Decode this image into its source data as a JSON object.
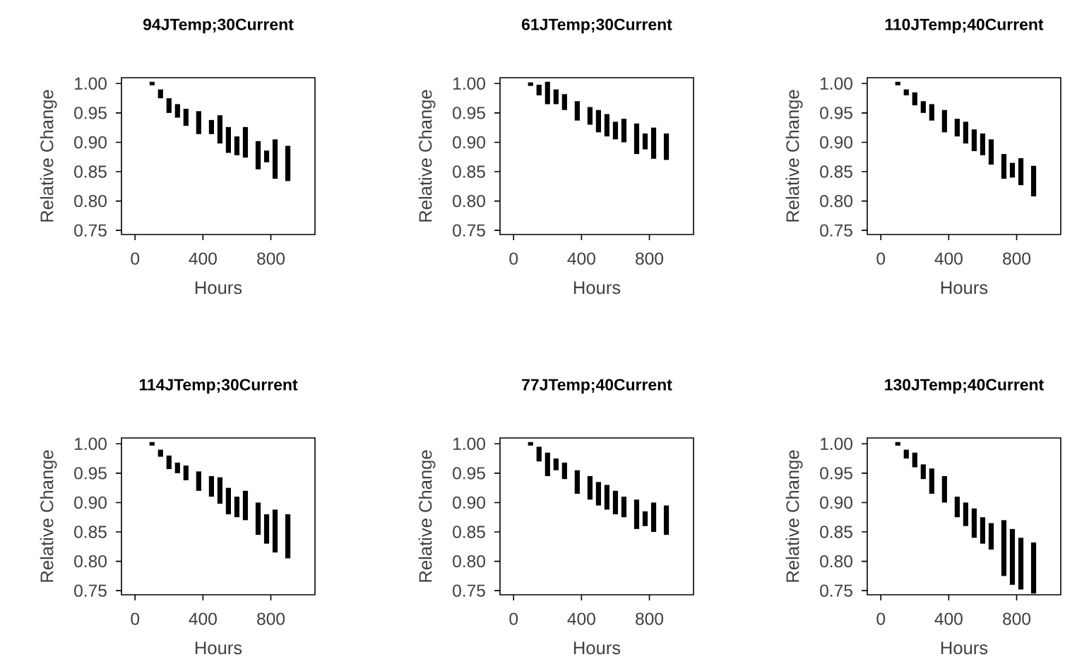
{
  "chart_data": [
    {
      "type": "bar",
      "title": "94JTemp;30Current",
      "xlabel": "Hours",
      "ylabel": "Relative Change",
      "color": "#000000",
      "x": [
        100,
        150,
        200,
        250,
        300,
        375,
        450,
        500,
        550,
        600,
        650,
        725,
        775,
        825,
        900
      ],
      "base": [
        0.997,
        0.975,
        0.95,
        0.942,
        0.928,
        0.914,
        0.914,
        0.898,
        0.882,
        0.878,
        0.874,
        0.854,
        0.866,
        0.838,
        0.834
      ],
      "values": [
        0.006,
        0.015,
        0.025,
        0.023,
        0.029,
        0.039,
        0.024,
        0.048,
        0.044,
        0.032,
        0.052,
        0.048,
        0.02,
        0.067,
        0.06
      ],
      "xlim": [
        -80,
        1060
      ],
      "ylim": [
        0.743,
        1.01
      ],
      "xticks": [
        0,
        400,
        800
      ],
      "yticks": [
        {
          "value": 0.75,
          "label": "0.75"
        },
        {
          "value": 0.8,
          "label": "0.80"
        },
        {
          "value": 0.85,
          "label": "0.85"
        },
        {
          "value": 0.9,
          "label": "0.90"
        },
        {
          "value": 0.95,
          "label": "0.95"
        },
        {
          "value": 1.0,
          "label": "1.00"
        }
      ]
    },
    {
      "type": "bar",
      "title": "61JTemp;30Current",
      "xlabel": "Hours",
      "ylabel": "Relative Change",
      "color": "#000000",
      "x": [
        100,
        150,
        200,
        250,
        300,
        375,
        450,
        500,
        550,
        600,
        650,
        725,
        775,
        825,
        900
      ],
      "base": [
        0.996,
        0.98,
        0.965,
        0.965,
        0.955,
        0.937,
        0.93,
        0.917,
        0.91,
        0.905,
        0.9,
        0.88,
        0.888,
        0.872,
        0.87
      ],
      "values": [
        0.006,
        0.018,
        0.038,
        0.025,
        0.027,
        0.033,
        0.03,
        0.038,
        0.038,
        0.03,
        0.04,
        0.052,
        0.027,
        0.053,
        0.045
      ],
      "xlim": [
        -80,
        1060
      ],
      "ylim": [
        0.743,
        1.01
      ],
      "xticks": [
        0,
        400,
        800
      ],
      "yticks": [
        {
          "value": 0.75,
          "label": "0.75"
        },
        {
          "value": 0.8,
          "label": "0.80"
        },
        {
          "value": 0.85,
          "label": "0.85"
        },
        {
          "value": 0.9,
          "label": "0.90"
        },
        {
          "value": 0.95,
          "label": "0.95"
        },
        {
          "value": 1.0,
          "label": "1.00"
        }
      ]
    },
    {
      "type": "bar",
      "title": "110JTemp;40Current",
      "xlabel": "Hours",
      "ylabel": "Relative Change",
      "color": "#000000",
      "x": [
        100,
        150,
        200,
        250,
        300,
        375,
        450,
        500,
        550,
        600,
        650,
        725,
        775,
        825,
        900
      ],
      "base": [
        0.997,
        0.98,
        0.963,
        0.95,
        0.937,
        0.917,
        0.91,
        0.898,
        0.885,
        0.878,
        0.862,
        0.838,
        0.84,
        0.827,
        0.808
      ],
      "values": [
        0.006,
        0.01,
        0.022,
        0.02,
        0.028,
        0.038,
        0.03,
        0.037,
        0.037,
        0.037,
        0.043,
        0.042,
        0.025,
        0.046,
        0.052
      ],
      "xlim": [
        -80,
        1060
      ],
      "ylim": [
        0.743,
        1.01
      ],
      "xticks": [
        0,
        400,
        800
      ],
      "yticks": [
        {
          "value": 0.75,
          "label": "0.75"
        },
        {
          "value": 0.8,
          "label": "0.80"
        },
        {
          "value": 0.85,
          "label": "0.85"
        },
        {
          "value": 0.9,
          "label": "0.90"
        },
        {
          "value": 0.95,
          "label": "0.95"
        },
        {
          "value": 1.0,
          "label": "1.00"
        }
      ]
    },
    {
      "type": "bar",
      "title": "114JTemp;30Current",
      "xlabel": "Hours",
      "ylabel": "Relative Change",
      "color": "#000000",
      "x": [
        100,
        150,
        200,
        250,
        300,
        375,
        450,
        500,
        550,
        600,
        650,
        725,
        775,
        825,
        900
      ],
      "base": [
        0.997,
        0.978,
        0.957,
        0.95,
        0.938,
        0.92,
        0.91,
        0.898,
        0.88,
        0.875,
        0.87,
        0.845,
        0.83,
        0.815,
        0.805
      ],
      "values": [
        0.006,
        0.012,
        0.023,
        0.018,
        0.025,
        0.033,
        0.035,
        0.045,
        0.045,
        0.035,
        0.05,
        0.055,
        0.05,
        0.073,
        0.075
      ],
      "xlim": [
        -80,
        1060
      ],
      "ylim": [
        0.743,
        1.01
      ],
      "xticks": [
        0,
        400,
        800
      ],
      "yticks": [
        {
          "value": 0.75,
          "label": "0.75"
        },
        {
          "value": 0.8,
          "label": "0.80"
        },
        {
          "value": 0.85,
          "label": "0.85"
        },
        {
          "value": 0.9,
          "label": "0.90"
        },
        {
          "value": 0.95,
          "label": "0.95"
        },
        {
          "value": 1.0,
          "label": "1.00"
        }
      ]
    },
    {
      "type": "bar",
      "title": "77JTemp;40Current",
      "xlabel": "Hours",
      "ylabel": "Relative Change",
      "color": "#000000",
      "x": [
        100,
        150,
        200,
        250,
        300,
        375,
        450,
        500,
        550,
        600,
        650,
        725,
        775,
        825,
        900
      ],
      "base": [
        0.997,
        0.97,
        0.945,
        0.955,
        0.94,
        0.915,
        0.905,
        0.895,
        0.888,
        0.88,
        0.875,
        0.855,
        0.86,
        0.85,
        0.845
      ],
      "values": [
        0.006,
        0.025,
        0.04,
        0.02,
        0.028,
        0.04,
        0.04,
        0.04,
        0.042,
        0.04,
        0.035,
        0.05,
        0.025,
        0.05,
        0.05
      ],
      "xlim": [
        -80,
        1060
      ],
      "ylim": [
        0.743,
        1.01
      ],
      "xticks": [
        0,
        400,
        800
      ],
      "yticks": [
        {
          "value": 0.75,
          "label": "0.75"
        },
        {
          "value": 0.8,
          "label": "0.80"
        },
        {
          "value": 0.85,
          "label": "0.85"
        },
        {
          "value": 0.9,
          "label": "0.90"
        },
        {
          "value": 0.95,
          "label": "0.95"
        },
        {
          "value": 1.0,
          "label": "1.00"
        }
      ]
    },
    {
      "type": "bar",
      "title": "130JTemp;40Current",
      "xlabel": "Hours",
      "ylabel": "Relative Change",
      "color": "#000000",
      "x": [
        100,
        150,
        200,
        250,
        300,
        375,
        450,
        500,
        550,
        600,
        650,
        725,
        775,
        825,
        900
      ],
      "base": [
        0.997,
        0.975,
        0.96,
        0.94,
        0.915,
        0.9,
        0.875,
        0.86,
        0.84,
        0.83,
        0.82,
        0.775,
        0.76,
        0.752,
        0.745
      ],
      "values": [
        0.006,
        0.015,
        0.025,
        0.025,
        0.043,
        0.045,
        0.035,
        0.04,
        0.05,
        0.045,
        0.045,
        0.095,
        0.095,
        0.088,
        0.087
      ],
      "xlim": [
        -80,
        1060
      ],
      "ylim": [
        0.743,
        1.01
      ],
      "xticks": [
        0,
        400,
        800
      ],
      "yticks": [
        {
          "value": 0.75,
          "label": "0.75"
        },
        {
          "value": 0.8,
          "label": "0.80"
        },
        {
          "value": 0.85,
          "label": "0.85"
        },
        {
          "value": 0.9,
          "label": "0.90"
        },
        {
          "value": 0.95,
          "label": "0.95"
        },
        {
          "value": 1.0,
          "label": "1.00"
        }
      ]
    }
  ]
}
